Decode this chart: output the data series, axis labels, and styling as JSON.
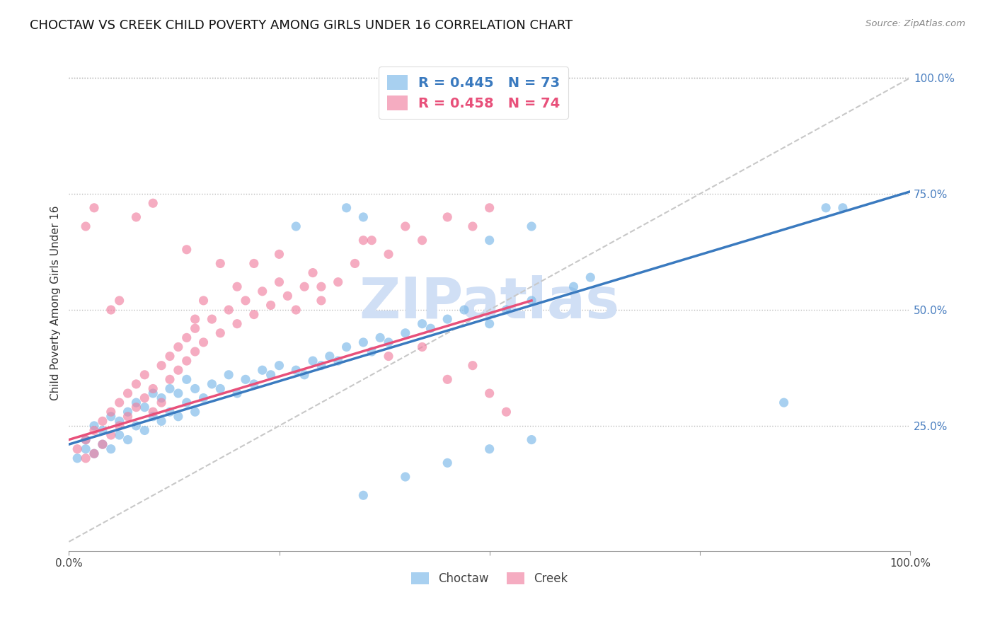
{
  "title": "CHOCTAW VS CREEK CHILD POVERTY AMONG GIRLS UNDER 16 CORRELATION CHART",
  "source": "Source: ZipAtlas.com",
  "ylabel": "Child Poverty Among Girls Under 16",
  "xlim": [
    0,
    1
  ],
  "ylim": [
    -0.02,
    1.05
  ],
  "choctaw_color": "#7ab8e8",
  "creek_color": "#f080a0",
  "choctaw_line_color": "#3a7abf",
  "creek_line_color": "#e8507a",
  "diagonal_color": "#c8c8c8",
  "background_color": "#ffffff",
  "watermark": "ZIPatlas",
  "watermark_color": "#d0dff5",
  "title_fontsize": 13,
  "label_fontsize": 11,
  "tick_fontsize": 11,
  "legend1_label": "R = 0.445   N = 73",
  "legend2_label": "R = 0.458   N = 74",
  "legend1_color": "#3a7abf",
  "legend2_color": "#e8507a",
  "choctaw_x": [
    0.01,
    0.02,
    0.02,
    0.03,
    0.03,
    0.04,
    0.04,
    0.05,
    0.05,
    0.06,
    0.06,
    0.07,
    0.07,
    0.08,
    0.08,
    0.09,
    0.09,
    0.1,
    0.1,
    0.11,
    0.11,
    0.12,
    0.12,
    0.13,
    0.13,
    0.14,
    0.14,
    0.15,
    0.15,
    0.16,
    0.17,
    0.18,
    0.19,
    0.2,
    0.21,
    0.22,
    0.23,
    0.24,
    0.25,
    0.27,
    0.28,
    0.29,
    0.3,
    0.31,
    0.32,
    0.33,
    0.35,
    0.36,
    0.37,
    0.38,
    0.4,
    0.42,
    0.43,
    0.45,
    0.47,
    0.5,
    0.52,
    0.55,
    0.6,
    0.62,
    0.27,
    0.33,
    0.35,
    0.5,
    0.55,
    0.85,
    0.9,
    0.92,
    0.35,
    0.4,
    0.45,
    0.5,
    0.55
  ],
  "choctaw_y": [
    0.18,
    0.2,
    0.22,
    0.19,
    0.25,
    0.21,
    0.24,
    0.2,
    0.27,
    0.23,
    0.26,
    0.22,
    0.28,
    0.25,
    0.3,
    0.24,
    0.29,
    0.27,
    0.32,
    0.26,
    0.31,
    0.28,
    0.33,
    0.27,
    0.32,
    0.3,
    0.35,
    0.28,
    0.33,
    0.31,
    0.34,
    0.33,
    0.36,
    0.32,
    0.35,
    0.34,
    0.37,
    0.36,
    0.38,
    0.37,
    0.36,
    0.39,
    0.38,
    0.4,
    0.39,
    0.42,
    0.43,
    0.41,
    0.44,
    0.43,
    0.45,
    0.47,
    0.46,
    0.48,
    0.5,
    0.47,
    0.5,
    0.52,
    0.55,
    0.57,
    0.68,
    0.72,
    0.7,
    0.65,
    0.68,
    0.3,
    0.72,
    0.72,
    0.1,
    0.14,
    0.17,
    0.2,
    0.22
  ],
  "creek_x": [
    0.01,
    0.02,
    0.02,
    0.03,
    0.03,
    0.04,
    0.04,
    0.05,
    0.05,
    0.06,
    0.06,
    0.07,
    0.07,
    0.08,
    0.08,
    0.09,
    0.09,
    0.1,
    0.1,
    0.11,
    0.11,
    0.12,
    0.12,
    0.13,
    0.13,
    0.14,
    0.14,
    0.15,
    0.15,
    0.16,
    0.17,
    0.18,
    0.19,
    0.2,
    0.21,
    0.22,
    0.23,
    0.24,
    0.25,
    0.26,
    0.27,
    0.28,
    0.29,
    0.3,
    0.32,
    0.34,
    0.36,
    0.38,
    0.4,
    0.42,
    0.45,
    0.48,
    0.5,
    0.02,
    0.03,
    0.05,
    0.06,
    0.08,
    0.1,
    0.14,
    0.15,
    0.16,
    0.18,
    0.2,
    0.22,
    0.25,
    0.3,
    0.35,
    0.38,
    0.42,
    0.45,
    0.48,
    0.5,
    0.52
  ],
  "creek_y": [
    0.2,
    0.22,
    0.18,
    0.24,
    0.19,
    0.26,
    0.21,
    0.28,
    0.23,
    0.3,
    0.25,
    0.32,
    0.27,
    0.34,
    0.29,
    0.36,
    0.31,
    0.28,
    0.33,
    0.38,
    0.3,
    0.4,
    0.35,
    0.42,
    0.37,
    0.44,
    0.39,
    0.46,
    0.41,
    0.43,
    0.48,
    0.45,
    0.5,
    0.47,
    0.52,
    0.49,
    0.54,
    0.51,
    0.56,
    0.53,
    0.5,
    0.55,
    0.58,
    0.52,
    0.56,
    0.6,
    0.65,
    0.62,
    0.68,
    0.65,
    0.7,
    0.68,
    0.72,
    0.68,
    0.72,
    0.5,
    0.52,
    0.7,
    0.73,
    0.63,
    0.48,
    0.52,
    0.6,
    0.55,
    0.6,
    0.62,
    0.55,
    0.65,
    0.4,
    0.42,
    0.35,
    0.38,
    0.32,
    0.28
  ],
  "choctaw_line_x0": 0.0,
  "choctaw_line_x1": 1.0,
  "choctaw_line_y0": 0.21,
  "choctaw_line_y1": 0.755,
  "creek_line_x0": 0.0,
  "creek_line_x1": 0.55,
  "creek_line_y0": 0.22,
  "creek_line_y1": 0.52
}
